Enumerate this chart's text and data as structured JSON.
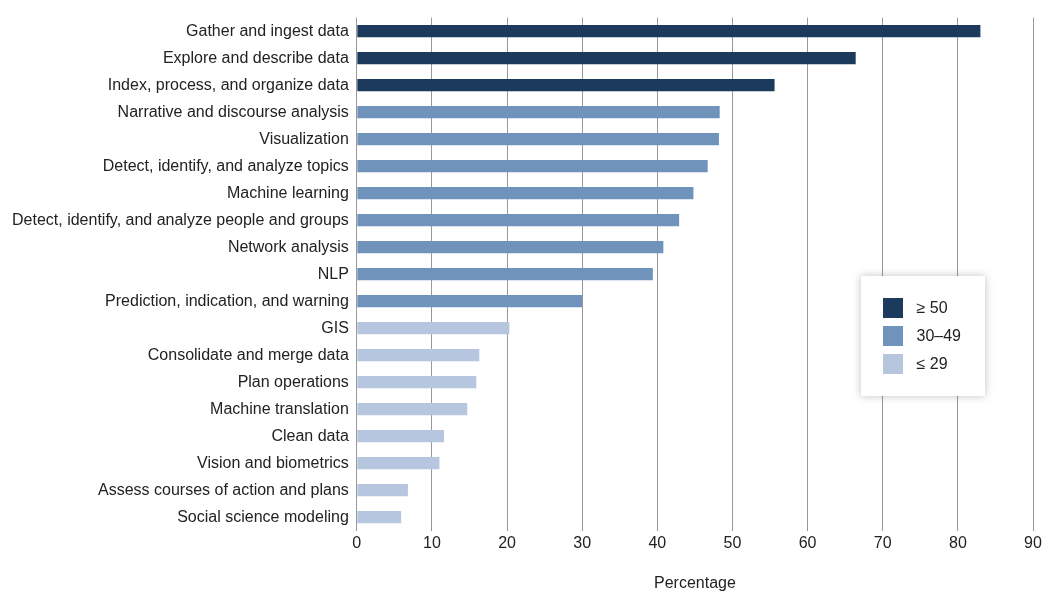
{
  "chart_data": {
    "type": "bar",
    "orientation": "horizontal",
    "xlabel": "Percentage",
    "categories": [
      "Gather and ingest data",
      "Explore and describe data",
      "Index, process, and organize data",
      "Narrative and discourse analysis",
      "Visualization",
      "Detect, identify, and analyze topics",
      "Machine learning",
      "Detect, identify, and analyze people and groups",
      "Network analysis",
      "NLP",
      "Prediction, indication, and warning",
      "GIS",
      "Consolidate and merge data",
      "Plan operations",
      "Machine translation",
      "Clean data",
      "Vision and biometrics",
      "Assess courses of action and plans",
      "Social science modeling"
    ],
    "series": [
      {
        "name": "≥ 50",
        "color": "#1b3a5c",
        "values": [
          83,
          66.4,
          55.6,
          null,
          null,
          null,
          null,
          null,
          null,
          null,
          null,
          null,
          null,
          null,
          null,
          null,
          null,
          null,
          null
        ]
      },
      {
        "name": "30–49",
        "color": "#6f93bb",
        "values": [
          null,
          null,
          null,
          48.3,
          48.2,
          46.7,
          44.8,
          42.9,
          40.8,
          39.4,
          30,
          null,
          null,
          null,
          null,
          null,
          null,
          null,
          null
        ]
      },
      {
        "name": "≤ 29",
        "color": "#b6c6df",
        "values": [
          null,
          null,
          null,
          null,
          null,
          null,
          null,
          null,
          null,
          null,
          null,
          20.3,
          16.3,
          15.9,
          14.7,
          11.6,
          11,
          6.8,
          5.9
        ]
      }
    ],
    "xlim": [
      0,
      90
    ],
    "xticks": [
      0,
      10,
      20,
      30,
      40,
      50,
      60,
      70,
      80,
      90
    ],
    "grid": "x",
    "legend": "right"
  }
}
